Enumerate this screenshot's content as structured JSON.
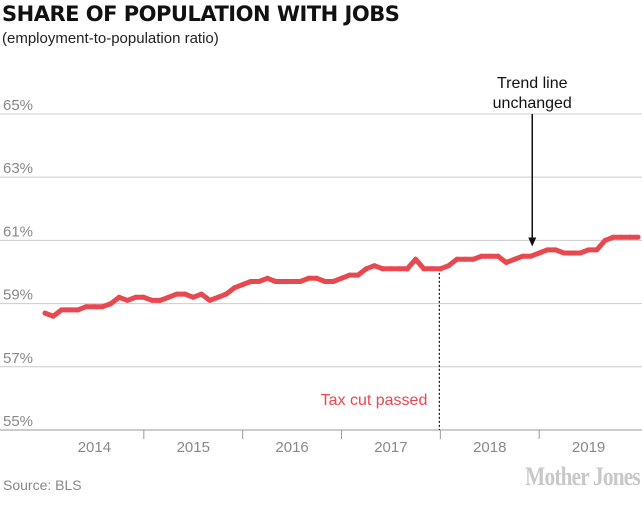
{
  "title": "SHARE OF POPULATION WITH JOBS",
  "subtitle": "(employment-to-population ratio)",
  "source": "Source: BLS",
  "logo": "Mother Jones",
  "colors": {
    "line": "#e8484f",
    "annotation_red": "#e8484f",
    "grid": "#cccccc",
    "text": "#111111"
  },
  "chart_data": {
    "type": "line",
    "title": "SHARE OF POPULATION WITH JOBS",
    "subtitle": "(employment-to-population ratio)",
    "x_start": 2014.0,
    "x_step": 0.083333,
    "xlim": [
      2014.0,
      2020.0
    ],
    "ylim": [
      55,
      65.6
    ],
    "yticks": [
      55,
      57,
      59,
      61,
      63,
      65
    ],
    "ytick_labels": [
      "55%",
      "57%",
      "59%",
      "61%",
      "63%",
      "65%"
    ],
    "xtick_labels": [
      "2014",
      "2015",
      "2016",
      "2017",
      "2018",
      "2019"
    ],
    "xtick_positions": [
      2014.5,
      2015.5,
      2016.5,
      2017.5,
      2018.5,
      2019.5
    ],
    "year_boundaries": [
      2015,
      2016,
      2017,
      2018,
      2019
    ],
    "grid": true,
    "series": [
      {
        "values": [
          58.7,
          58.6,
          58.8,
          58.8,
          58.8,
          58.9,
          58.9,
          58.9,
          59.0,
          59.2,
          59.1,
          59.2,
          59.2,
          59.1,
          59.1,
          59.2,
          59.3,
          59.3,
          59.2,
          59.3,
          59.1,
          59.2,
          59.3,
          59.5,
          59.6,
          59.7,
          59.7,
          59.8,
          59.7,
          59.7,
          59.7,
          59.7,
          59.8,
          59.8,
          59.7,
          59.7,
          59.8,
          59.9,
          59.9,
          60.1,
          60.2,
          60.1,
          60.1,
          60.1,
          60.1,
          60.4,
          60.1,
          60.1,
          60.1,
          60.2,
          60.4,
          60.4,
          60.4,
          60.5,
          60.5,
          60.5,
          60.3,
          60.4,
          60.5,
          60.5,
          60.6,
          60.7,
          60.7,
          60.6,
          60.6,
          60.6,
          60.7,
          60.7,
          61.0,
          61.1,
          61.1,
          61.1,
          61.1
        ]
      }
    ],
    "annotations": [
      {
        "text_lines": [
          "Trend line",
          "unchanged"
        ],
        "x": 2018.93,
        "y": 60.65,
        "style": "arrow"
      },
      {
        "text": "Tax cut passed",
        "x": 2017.99,
        "y": 60.1,
        "style": "dotted-vline"
      }
    ]
  }
}
